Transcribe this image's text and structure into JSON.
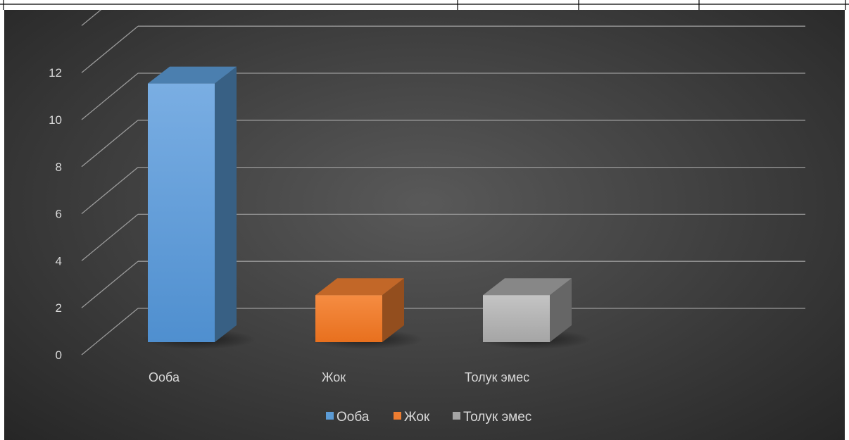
{
  "chart_data": {
    "type": "bar",
    "style": "3d-column",
    "categories": [
      "Ооба",
      "Жок",
      "Толук эмес"
    ],
    "values": [
      11,
      2,
      2
    ],
    "colors": [
      "#5b9bd5",
      "#ed7d31",
      "#a5a5a5"
    ],
    "ylim": [
      0,
      12
    ],
    "yticks": [
      "0",
      "2",
      "4",
      "6",
      "8",
      "10",
      "12"
    ],
    "grid": true,
    "legend_position": "bottom",
    "legend": [
      "Ооба",
      "Жок",
      "Толук эмес"
    ],
    "title": "",
    "xlabel": "",
    "ylabel": ""
  }
}
